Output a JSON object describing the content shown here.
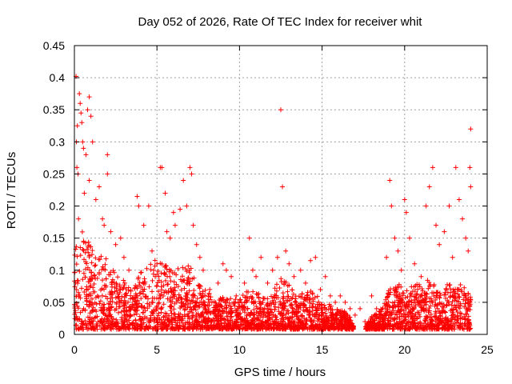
{
  "chart_data": {
    "type": "scatter",
    "title": "Day 052 of 2026, Rate Of TEC Index for receiver whit",
    "xlabel": "GPS time / hours",
    "ylabel": "ROTI / TECUs",
    "xlim": [
      0,
      25
    ],
    "ylim": [
      0,
      0.45
    ],
    "xticks": [
      "0",
      "5",
      "10",
      "15",
      "20",
      "25"
    ],
    "yticks": [
      "0",
      "0.05",
      "0.1",
      "0.15",
      "0.2",
      "0.25",
      "0.3",
      "0.35",
      "0.4",
      "0.45"
    ],
    "grid": true,
    "marker": "plus",
    "color": "#ff0000",
    "series": [
      {
        "points": [
          [
            0.1,
            0.402
          ],
          [
            0.15,
            0.26
          ],
          [
            0.12,
            0.3
          ],
          [
            0.18,
            0.325
          ],
          [
            0.22,
            0.25
          ],
          [
            0.25,
            0.18
          ],
          [
            0.3,
            0.375
          ],
          [
            0.35,
            0.36
          ],
          [
            0.4,
            0.345
          ],
          [
            0.45,
            0.33
          ],
          [
            0.5,
            0.3
          ],
          [
            0.55,
            0.29
          ],
          [
            0.7,
            0.28
          ],
          [
            0.8,
            0.35
          ],
          [
            0.9,
            0.37
          ],
          [
            1.0,
            0.34
          ],
          [
            1.1,
            0.3
          ],
          [
            0.6,
            0.22
          ],
          [
            0.9,
            0.24
          ],
          [
            1.3,
            0.21
          ],
          [
            1.5,
            0.23
          ],
          [
            1.7,
            0.18
          ],
          [
            1.8,
            0.17
          ],
          [
            2.0,
            0.28
          ],
          [
            2.0,
            0.25
          ],
          [
            2.2,
            0.16
          ],
          [
            2.5,
            0.14
          ],
          [
            2.8,
            0.15
          ],
          [
            3.0,
            0.12
          ],
          [
            3.3,
            0.1
          ],
          [
            3.8,
            0.215
          ],
          [
            3.9,
            0.2
          ],
          [
            4.2,
            0.17
          ],
          [
            4.5,
            0.2
          ],
          [
            4.7,
            0.13
          ],
          [
            5.0,
            0.11
          ],
          [
            5.2,
            0.26
          ],
          [
            5.3,
            0.26
          ],
          [
            5.5,
            0.22
          ],
          [
            5.6,
            0.16
          ],
          [
            5.8,
            0.15
          ],
          [
            6.0,
            0.19
          ],
          [
            6.1,
            0.17
          ],
          [
            6.4,
            0.195
          ],
          [
            6.6,
            0.24
          ],
          [
            6.8,
            0.2
          ],
          [
            7.0,
            0.26
          ],
          [
            7.1,
            0.25
          ],
          [
            7.2,
            0.17
          ],
          [
            7.4,
            0.14
          ],
          [
            7.6,
            0.12
          ],
          [
            7.8,
            0.1
          ],
          [
            8.2,
            0.07
          ],
          [
            8.7,
            0.08
          ],
          [
            9.0,
            0.11
          ],
          [
            9.2,
            0.1
          ],
          [
            9.5,
            0.09
          ],
          [
            9.8,
            0.06
          ],
          [
            10.3,
            0.08
          ],
          [
            10.6,
            0.15
          ],
          [
            10.8,
            0.1
          ],
          [
            11.0,
            0.09
          ],
          [
            11.3,
            0.12
          ],
          [
            11.7,
            0.08
          ],
          [
            12.0,
            0.1
          ],
          [
            12.3,
            0.12
          ],
          [
            12.5,
            0.35
          ],
          [
            12.6,
            0.23
          ],
          [
            12.8,
            0.13
          ],
          [
            13.0,
            0.11
          ],
          [
            13.3,
            0.09
          ],
          [
            13.7,
            0.1
          ],
          [
            14.0,
            0.08
          ],
          [
            14.3,
            0.115
          ],
          [
            14.6,
            0.12
          ],
          [
            14.9,
            0.07
          ],
          [
            15.2,
            0.09
          ],
          [
            15.5,
            0.06
          ],
          [
            15.8,
            0.05
          ],
          [
            16.1,
            0.06
          ],
          [
            16.4,
            0.05
          ],
          [
            16.7,
            0.04
          ],
          [
            17.0,
            0.03
          ],
          [
            17.3,
            0.04
          ],
          [
            17.6,
            0.02
          ],
          [
            18.0,
            0.06
          ],
          [
            18.3,
            0.04
          ],
          [
            18.6,
            0.03
          ],
          [
            18.9,
            0.12
          ],
          [
            19.1,
            0.24
          ],
          [
            19.2,
            0.2
          ],
          [
            19.4,
            0.15
          ],
          [
            19.6,
            0.13
          ],
          [
            19.8,
            0.1
          ],
          [
            20.0,
            0.21
          ],
          [
            20.1,
            0.19
          ],
          [
            20.3,
            0.15
          ],
          [
            20.6,
            0.11
          ],
          [
            21.0,
            0.09
          ],
          [
            21.3,
            0.2
          ],
          [
            21.5,
            0.23
          ],
          [
            21.7,
            0.26
          ],
          [
            21.9,
            0.17
          ],
          [
            22.1,
            0.14
          ],
          [
            22.4,
            0.16
          ],
          [
            22.7,
            0.2
          ],
          [
            22.9,
            0.12
          ],
          [
            23.1,
            0.26
          ],
          [
            23.3,
            0.21
          ],
          [
            23.5,
            0.18
          ],
          [
            23.7,
            0.15
          ],
          [
            23.85,
            0.13
          ],
          [
            24.0,
            0.32
          ],
          [
            23.95,
            0.26
          ],
          [
            24.0,
            0.23
          ]
        ]
      }
    ],
    "envelope": {
      "x": [
        0,
        0.5,
        1,
        1.5,
        2,
        2.5,
        3,
        3.5,
        4,
        4.5,
        5,
        5.5,
        6,
        6.5,
        7,
        7.5,
        8,
        8.5,
        9,
        9.5,
        10,
        10.5,
        11,
        11.5,
        12,
        12.5,
        13,
        13.5,
        14,
        14.5,
        15,
        15.5,
        16,
        16.5,
        17,
        17.5,
        18,
        18.5,
        19,
        19.5,
        20,
        20.5,
        21,
        21.5,
        22,
        22.5,
        23,
        23.5,
        24
      ],
      "y": [
        0.12,
        0.16,
        0.13,
        0.12,
        0.11,
        0.09,
        0.08,
        0.06,
        0.09,
        0.1,
        0.11,
        0.1,
        0.1,
        0.1,
        0.1,
        0.07,
        0.06,
        0.05,
        0.05,
        0.05,
        0.05,
        0.06,
        0.06,
        0.05,
        0.06,
        0.08,
        0.07,
        0.05,
        0.06,
        0.06,
        0.04,
        0.04,
        0.03,
        0.03,
        0.0,
        0.0,
        0.02,
        0.03,
        0.06,
        0.07,
        0.07,
        0.07,
        0.07,
        0.08,
        0.07,
        0.07,
        0.07,
        0.07,
        0.05
      ]
    }
  }
}
